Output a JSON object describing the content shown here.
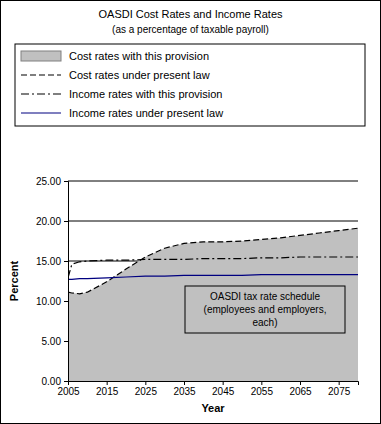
{
  "chart_data": {
    "type": "line",
    "title": "OASDI Cost Rates and Income Rates",
    "subtitle": "(as a percentage of taxable payroll)",
    "x_label": "Year",
    "y_label": "Percent",
    "x": [
      2005,
      2006,
      2008,
      2010,
      2015,
      2020,
      2025,
      2030,
      2035,
      2040,
      2045,
      2050,
      2055,
      2060,
      2065,
      2070,
      2075,
      2080
    ],
    "xlim": [
      2005,
      2080
    ],
    "xticks": [
      2005,
      2015,
      2025,
      2035,
      2045,
      2055,
      2065,
      2075
    ],
    "ylim": [
      0,
      25
    ],
    "yticks": [
      {
        "value": 0,
        "label": "0.00"
      },
      {
        "value": 5,
        "label": "5.00"
      },
      {
        "value": 10,
        "label": "10.00"
      },
      {
        "value": 15,
        "label": "15.00"
      },
      {
        "value": 20,
        "label": "20.00"
      },
      {
        "value": 25,
        "label": "25.00"
      }
    ],
    "grid": true,
    "legend": "top",
    "annotations": [
      "OASDI tax rate schedule",
      "(employees and employers,",
      "each)"
    ],
    "series": [
      {
        "name": "Cost rates with this provision",
        "type": "area",
        "color": "#c0c0c0",
        "values": [
          11.1,
          11.0,
          10.9,
          11.1,
          12.4,
          14.0,
          15.5,
          16.6,
          17.2,
          17.4,
          17.4,
          17.5,
          17.7,
          17.9,
          18.2,
          18.5,
          18.8,
          19.1
        ]
      },
      {
        "name": "Cost rates under present law",
        "type": "line",
        "color": "#000000",
        "line_style": "dashed",
        "values": [
          11.1,
          11.0,
          10.9,
          11.1,
          12.4,
          14.0,
          15.5,
          16.6,
          17.2,
          17.4,
          17.4,
          17.5,
          17.7,
          17.9,
          18.2,
          18.5,
          18.8,
          19.1
        ]
      },
      {
        "name": "Income rates with this provision",
        "type": "line",
        "color": "#000000",
        "line_style": "dashdot",
        "values": [
          12.9,
          14.6,
          14.9,
          15.0,
          15.1,
          15.1,
          15.2,
          15.2,
          15.2,
          15.3,
          15.3,
          15.3,
          15.4,
          15.4,
          15.5,
          15.5,
          15.5,
          15.5
        ]
      },
      {
        "name": "Income rates under present law",
        "type": "line",
        "color": "#000080",
        "line_style": "solid",
        "values": [
          12.7,
          12.7,
          12.8,
          12.8,
          12.9,
          13.0,
          13.1,
          13.1,
          13.2,
          13.2,
          13.2,
          13.2,
          13.3,
          13.3,
          13.3,
          13.3,
          13.3,
          13.3
        ]
      }
    ]
  }
}
